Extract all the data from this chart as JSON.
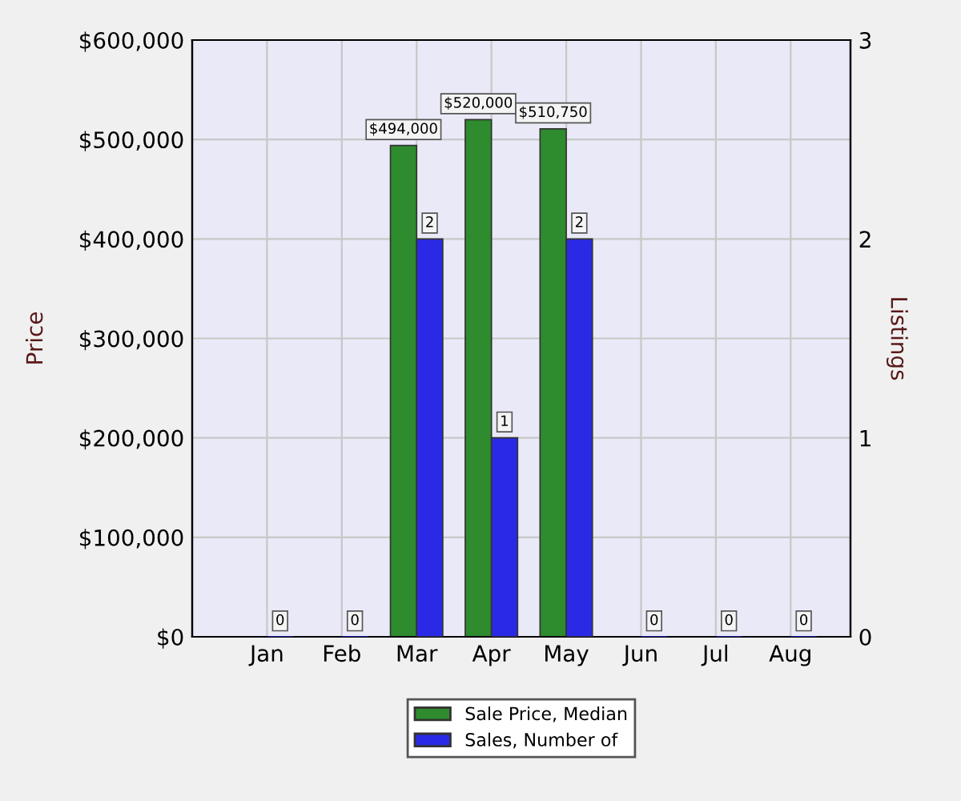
{
  "chart_data": {
    "type": "bar",
    "categories": [
      "Jan",
      "Feb",
      "Mar",
      "Apr",
      "May",
      "Jun",
      "Jul",
      "Aug"
    ],
    "ylabel": "Price",
    "y2label": "Listings",
    "ylim": [
      0,
      600000
    ],
    "yticks": [
      {
        "value": 0,
        "label": "$0"
      },
      {
        "value": 100000,
        "label": "$100,000"
      },
      {
        "value": 200000,
        "label": "$200,000"
      },
      {
        "value": 300000,
        "label": "$300,000"
      },
      {
        "value": 400000,
        "label": "$400,000"
      },
      {
        "value": 500000,
        "label": "$500,000"
      },
      {
        "value": 600000,
        "label": "$600,000"
      }
    ],
    "y2lim": [
      0,
      3
    ],
    "y2ticks": [
      0,
      1,
      2,
      3
    ],
    "series": [
      {
        "name": "Sale Price, Median",
        "color": "#2e8b2e",
        "values": [
          null,
          null,
          494000,
          520000,
          510750,
          null,
          null,
          null
        ],
        "value_labels": [
          null,
          null,
          "$494,000",
          "$520,000",
          "$510,750",
          null,
          null,
          null
        ]
      },
      {
        "name": "Sales, Number of",
        "color": "#2a2ae6",
        "axis": "y2",
        "values": [
          0,
          0,
          2,
          1,
          2,
          0,
          0,
          0
        ],
        "value_labels": [
          "0",
          "0",
          "2",
          "1",
          "2",
          "0",
          "0",
          "0"
        ]
      }
    ],
    "grid": true,
    "legend": "bottom"
  }
}
